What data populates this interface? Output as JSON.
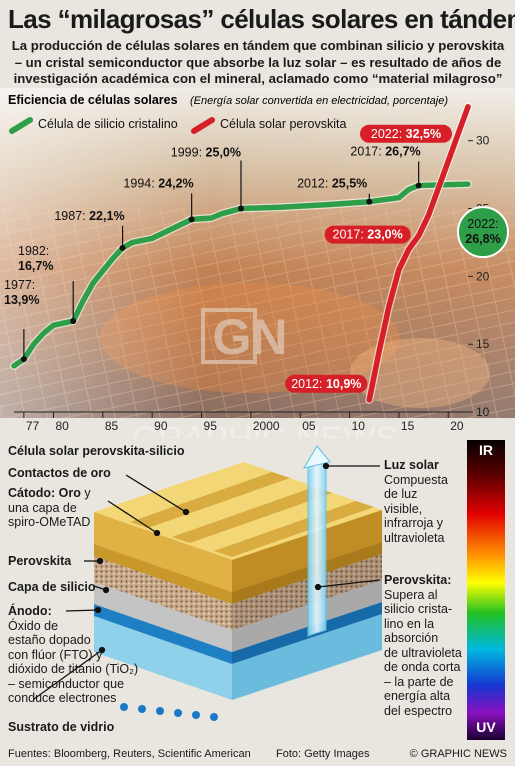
{
  "header": {
    "title": "Las “milagrosas” células solares en tándem",
    "subtitle": "La producción de células solares en tándem que combinan silicio y perovskita – un cristal semiconductor que absorbe la luz solar – es resultado de años de investigación académica con el mineral, aclamado como “material milagroso”"
  },
  "chart_data": {
    "type": "line",
    "title": "Eficiencia de células solares",
    "ylabel": "(Energía solar convertida en electricidad, porcentaje)",
    "x_ticks": [
      "77",
      "80",
      "85",
      "90",
      "95",
      "2000",
      "05",
      "10",
      "15",
      "20"
    ],
    "y_ticks": [
      "10",
      "15",
      "20",
      "25",
      "30"
    ],
    "xlim": [
      1976,
      2022
    ],
    "ylim": [
      10,
      33
    ],
    "series": [
      {
        "name": "Célula de silicio cristalino",
        "color": "#2e9e48",
        "points": [
          [
            1976,
            13.4
          ],
          [
            1977,
            13.9
          ],
          [
            1978,
            15.0
          ],
          [
            1979,
            15.8
          ],
          [
            1980,
            16.4
          ],
          [
            1982,
            16.7
          ],
          [
            1983,
            18.2
          ],
          [
            1984,
            19.5
          ],
          [
            1985,
            20.4
          ],
          [
            1986,
            21.3
          ],
          [
            1987,
            22.1
          ],
          [
            1988,
            22.5
          ],
          [
            1990,
            22.8
          ],
          [
            1992,
            23.5
          ],
          [
            1994,
            24.2
          ],
          [
            1996,
            24.3
          ],
          [
            1997,
            24.6
          ],
          [
            1998,
            24.8
          ],
          [
            1999,
            25.0
          ],
          [
            2003,
            25.1
          ],
          [
            2008,
            25.3
          ],
          [
            2012,
            25.5
          ],
          [
            2015,
            25.8
          ],
          [
            2016,
            26.4
          ],
          [
            2017,
            26.7
          ],
          [
            2022,
            26.8
          ]
        ]
      },
      {
        "name": "Célula solar perovskita",
        "color": "#d61f26",
        "points": [
          [
            2012,
            10.9
          ],
          [
            2013,
            14.5
          ],
          [
            2014,
            17.8
          ],
          [
            2015,
            20.5
          ],
          [
            2016,
            22.0
          ],
          [
            2017,
            23.0
          ],
          [
            2018,
            24.5
          ],
          [
            2019,
            26.5
          ],
          [
            2020,
            28.5
          ],
          [
            2021,
            30.5
          ],
          [
            2022,
            32.5
          ]
        ]
      }
    ],
    "annotations": [
      {
        "year": "1977",
        "value": "13,9%"
      },
      {
        "year": "1982",
        "value": "16,7%"
      },
      {
        "year": "1987",
        "value": "22,1%"
      },
      {
        "year": "1994",
        "value": "24,2%"
      },
      {
        "year": "1999",
        "value": "25,0%"
      },
      {
        "year": "2012",
        "value": "25,5%"
      },
      {
        "year": "2017",
        "value": "26,7%"
      },
      {
        "year": "2022",
        "value": "26,8%"
      },
      {
        "year": "2012",
        "value": "10,9%"
      },
      {
        "year": "2017",
        "value": "23,0%"
      },
      {
        "year": "2022",
        "value": "32,5%"
      }
    ]
  },
  "cell": {
    "title": "Célula solar perovskita-silicio",
    "gold_contacts": "Contactos de oro",
    "cathode_title": "Cátodo: Oro",
    "cathode_text_a": " y",
    "cathode_text_b": "una capa de",
    "cathode_text_c": "spiro-OMeTAD",
    "perovskite": "Perovskita",
    "silicon": "Capa de silicio",
    "anode_title": "Ánodo:",
    "anode_lines": [
      "Óxido de",
      "estaño dopado",
      "con flúor (FTO) y",
      "dióxido de titanio (TiO₂)",
      "– semiconductor que",
      "conduce electrones"
    ],
    "glass": "Sustrato de vidrio",
    "light_title": "Luz solar",
    "light_lines": [
      "Compuesta",
      "de luz",
      "visible,",
      "infrarroja y",
      "ultravioleta"
    ],
    "perov_note_title": "Perovskita:",
    "perov_note_lines": [
      "Supera al",
      "silicio crista-",
      "lino en la",
      "absorción",
      "de ultravioleta",
      "de onda corta",
      "– la parte de",
      "energía alta",
      "del espectro"
    ],
    "spectrum_top": "IR",
    "spectrum_bottom": "UV"
  },
  "watermark": {
    "logo": "GN",
    "text": "GRAPHIC NEWS"
  },
  "footer": {
    "sources": "Fuentes: Bloomberg, Reuters, Scientific American",
    "photo": "Foto: Getty Images",
    "copyright": "© GRAPHIC NEWS"
  }
}
